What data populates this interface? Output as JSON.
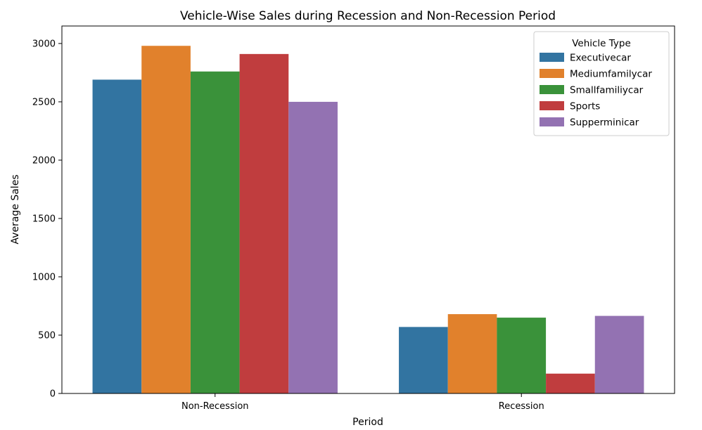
{
  "chart_data": {
    "type": "bar",
    "title": "Vehicle-Wise Sales during Recession and Non-Recession Period",
    "xlabel": "Period",
    "ylabel": "Average Sales",
    "categories": [
      "Non-Recession",
      "Recession"
    ],
    "ylim": [
      0,
      3150
    ],
    "yticks": [
      0,
      500,
      1000,
      1500,
      2000,
      2500,
      3000
    ],
    "grid": false,
    "legend": {
      "title": "Vehicle Type",
      "placement": "top-right"
    },
    "series": [
      {
        "name": "Executivecar",
        "color": "#3274a1",
        "values": [
          2690,
          570
        ]
      },
      {
        "name": "Mediumfamilycar",
        "color": "#e1812c",
        "values": [
          2980,
          680
        ]
      },
      {
        "name": "Smallfamiliycar",
        "color": "#3a923a",
        "values": [
          2760,
          650
        ]
      },
      {
        "name": "Sports",
        "color": "#c03d3e",
        "values": [
          2910,
          170
        ]
      },
      {
        "name": "Supperminicar",
        "color": "#9372b2",
        "values": [
          2500,
          665
        ]
      }
    ]
  }
}
